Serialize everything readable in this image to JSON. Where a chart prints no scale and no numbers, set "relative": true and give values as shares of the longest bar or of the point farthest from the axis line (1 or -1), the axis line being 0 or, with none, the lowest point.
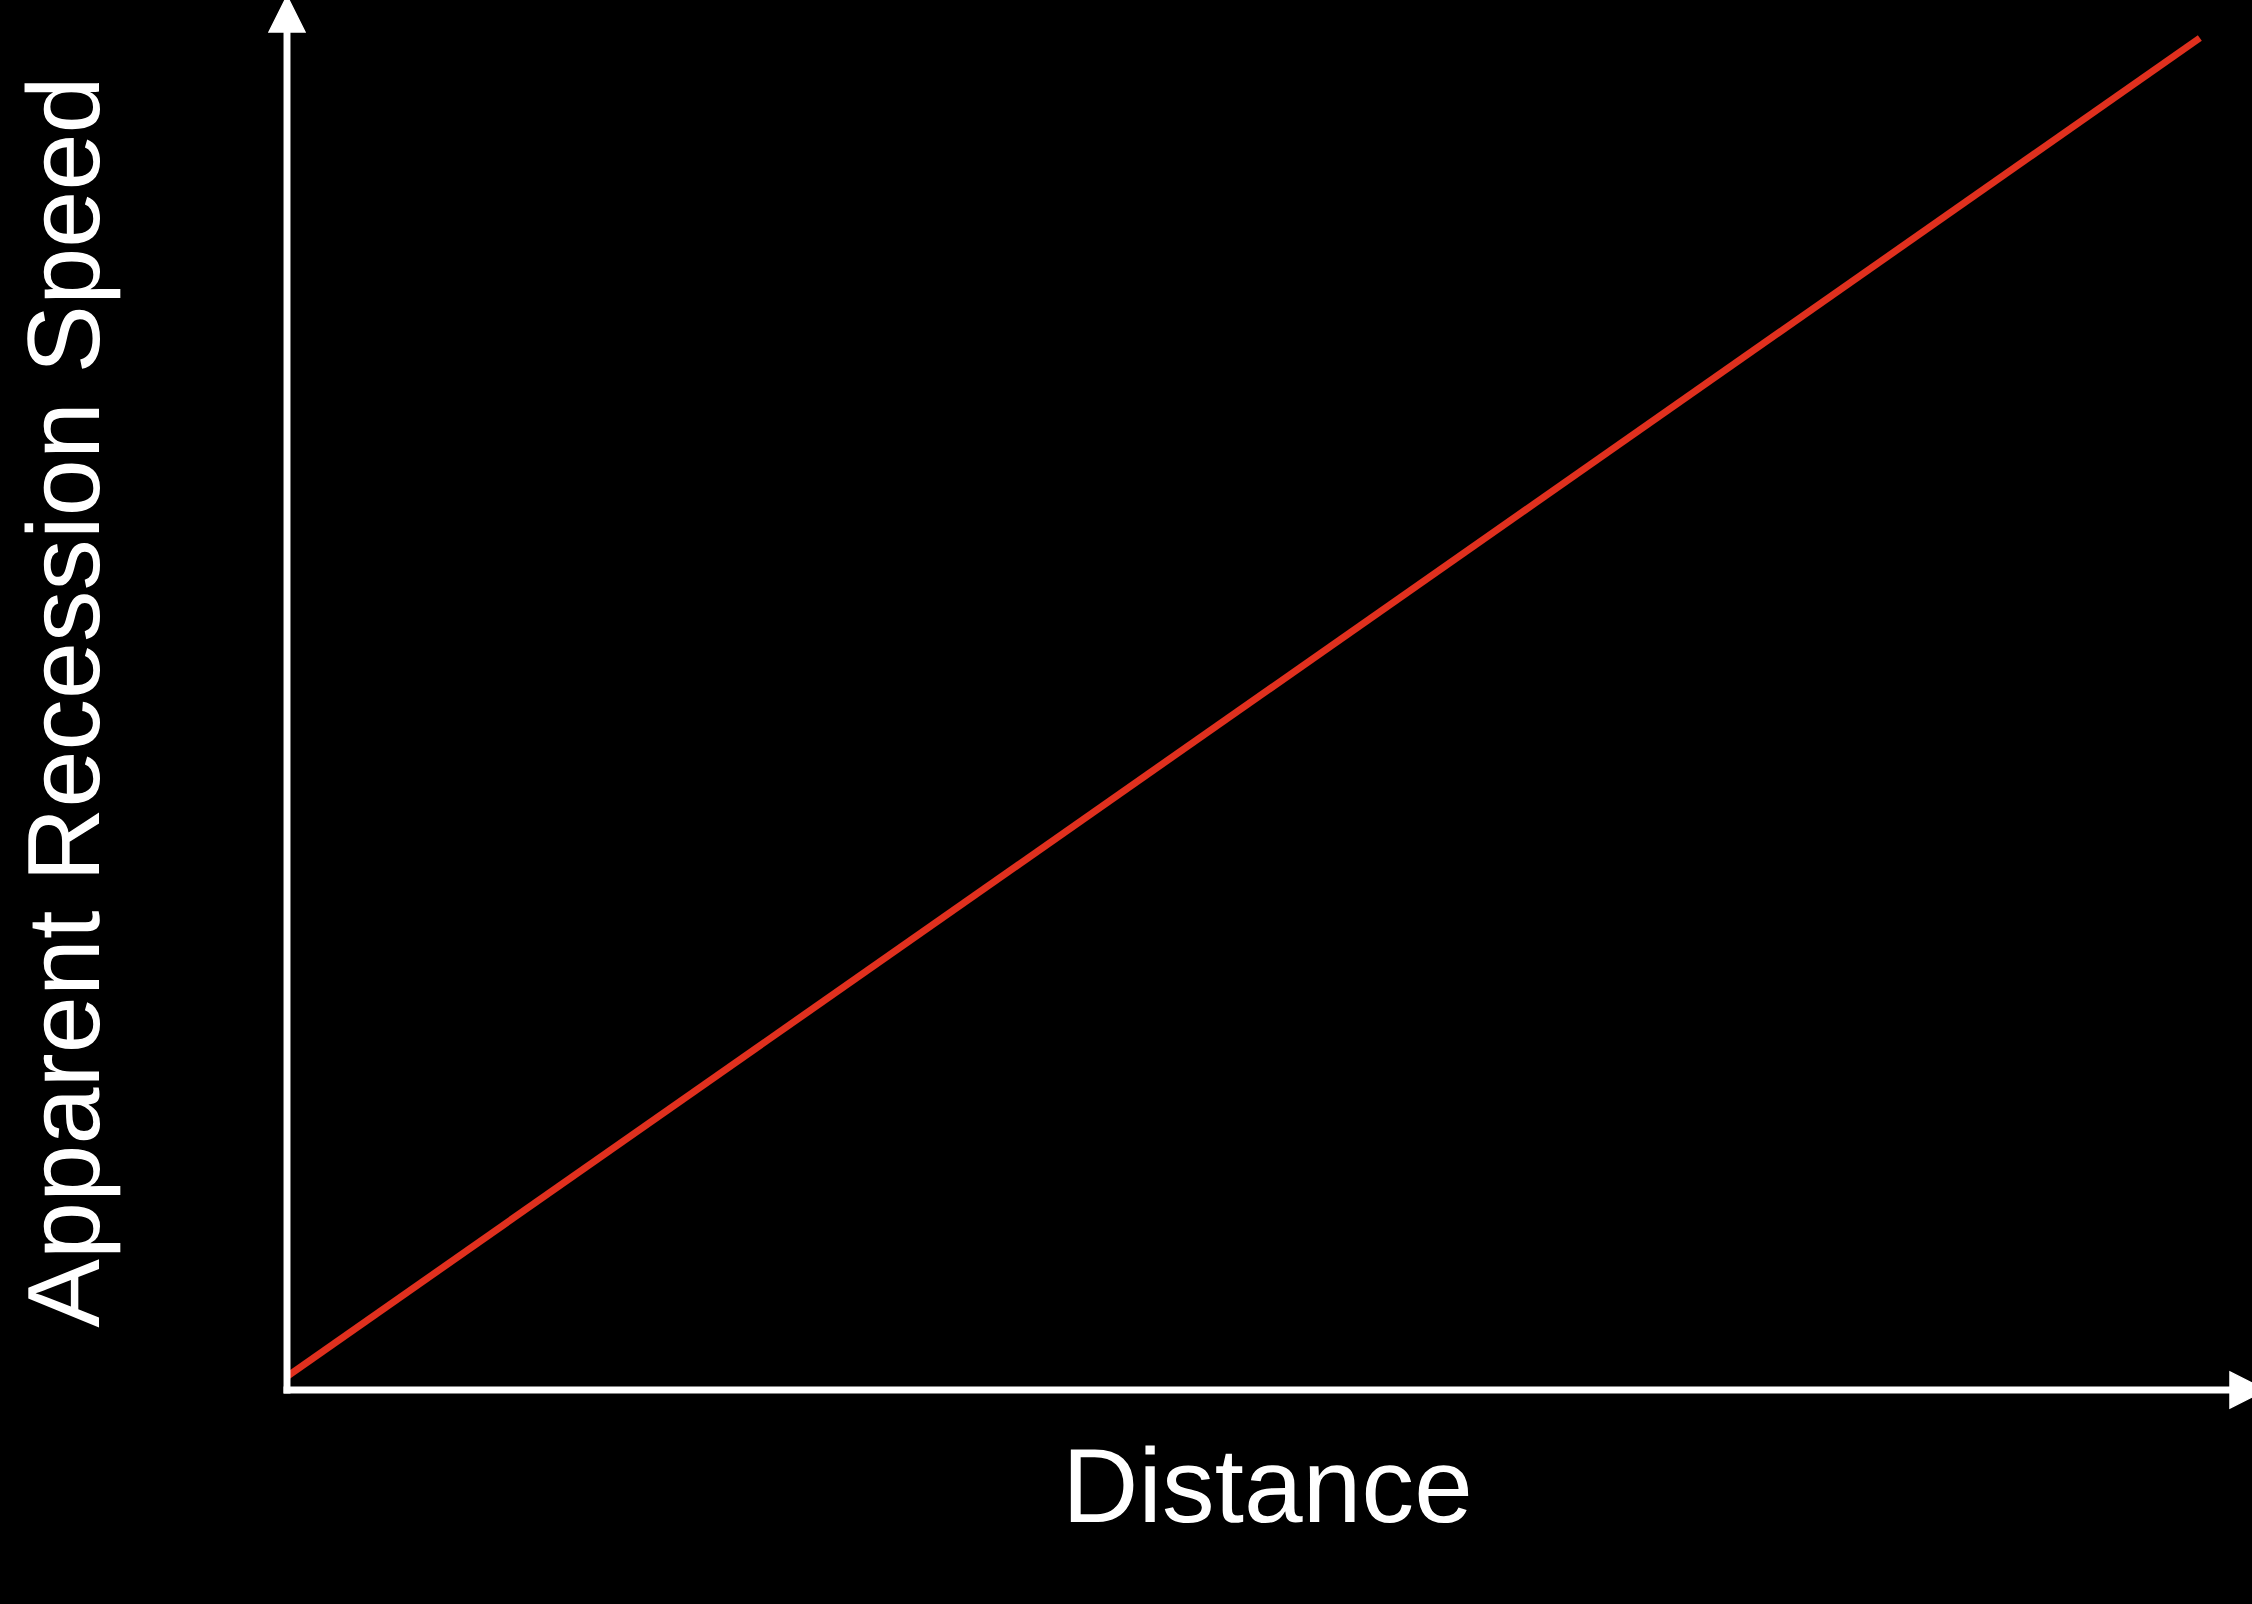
{
  "chart_data": {
    "type": "line",
    "relative": true,
    "xlabel": "Distance",
    "ylabel": "Apparent Recession Speed",
    "categories": [
      null,
      null
    ],
    "series": [
      {
        "color": "#e0301e",
        "values": [
          0.01,
          1
        ]
      }
    ],
    "ref_lines": [
      {
        "axis": "y",
        "value": 0,
        "color": "#ffffff"
      }
    ],
    "marker": "none",
    "line_style": "solid"
  }
}
